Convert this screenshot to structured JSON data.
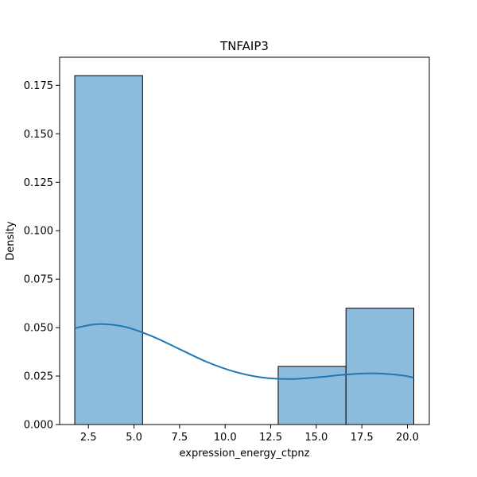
{
  "chart_data": {
    "type": "bar",
    "title": "TNFAIP3",
    "xlabel": "expression_energy_ctpnz",
    "ylabel": "Density",
    "xlim": [
      0.92,
      21.2
    ],
    "ylim": [
      0,
      0.1895
    ],
    "x_ticks": [
      2.5,
      5.0,
      7.5,
      10.0,
      12.5,
      15.0,
      17.5,
      20.0
    ],
    "y_ticks": [
      0.0,
      0.025,
      0.05,
      0.075,
      0.1,
      0.125,
      0.15,
      0.175
    ],
    "bins": [
      {
        "x0": 1.75,
        "x1": 5.47,
        "value": 0.18
      },
      {
        "x0": 5.47,
        "x1": 9.19,
        "value": 0.0
      },
      {
        "x0": 9.19,
        "x1": 12.91,
        "value": 0.0
      },
      {
        "x0": 12.91,
        "x1": 16.63,
        "value": 0.03
      },
      {
        "x0": 16.63,
        "x1": 20.35,
        "value": 0.06
      }
    ],
    "kde": {
      "x": [
        1.75,
        3.0,
        4.5,
        6.0,
        7.5,
        9.0,
        10.5,
        12.0,
        13.5,
        15.0,
        16.5,
        18.0,
        19.5,
        20.35
      ],
      "y": [
        0.0497,
        0.0518,
        0.0504,
        0.0455,
        0.0389,
        0.0323,
        0.0273,
        0.0243,
        0.0235,
        0.0243,
        0.0257,
        0.0264,
        0.0256,
        0.0242
      ]
    },
    "bar_color": "#8dbbdb",
    "bar_edge": "#000000",
    "kde_color": "#1f77b4",
    "grid": false
  }
}
